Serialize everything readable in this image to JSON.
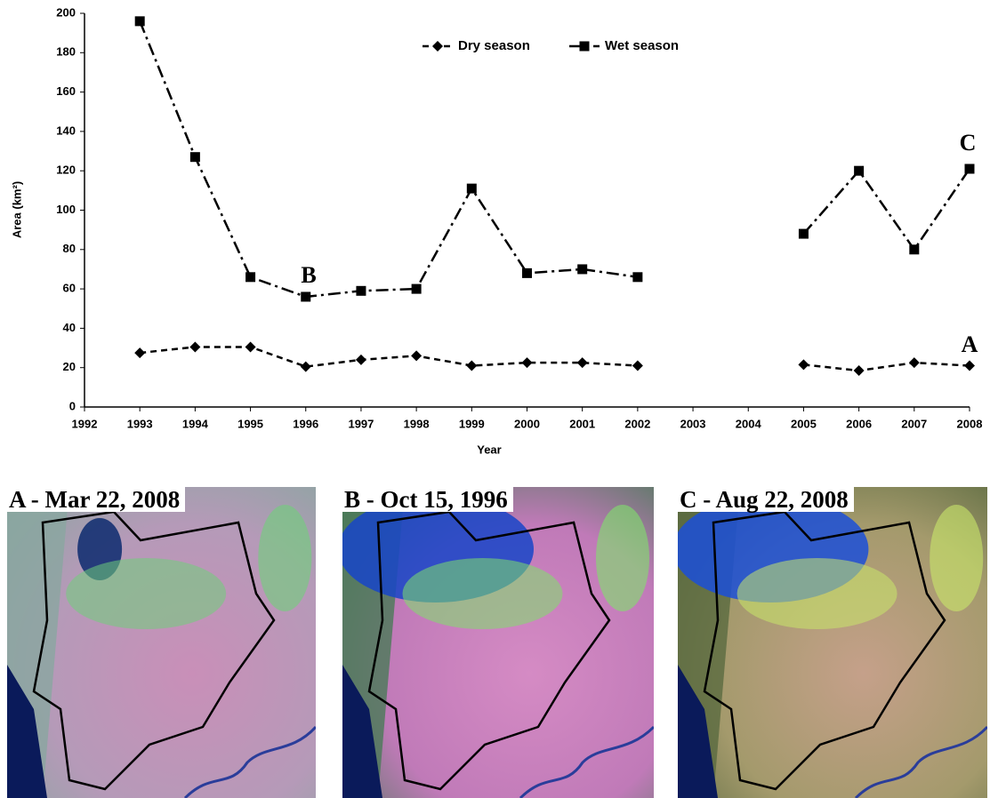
{
  "chart_data": {
    "type": "line",
    "x_label": "Year",
    "y_label": "Area (km²)",
    "x": [
      1993,
      1994,
      1995,
      1996,
      1997,
      1998,
      1999,
      2000,
      2001,
      2002,
      2003,
      2004,
      2005,
      2006,
      2007,
      2008
    ],
    "series": [
      {
        "name": "Dry season",
        "color": "#000000",
        "line_style": "dashed",
        "marker": "diamond",
        "values": [
          27.5,
          30.5,
          30.5,
          20.5,
          24,
          26,
          21,
          22.5,
          22.5,
          21,
          null,
          null,
          21.5,
          18.5,
          22.5,
          21
        ]
      },
      {
        "name": "Wet season",
        "color": "#000000",
        "line_style": "dashdot",
        "marker": "square",
        "values": [
          196,
          127,
          66,
          56,
          59,
          60,
          111,
          68,
          70,
          66,
          null,
          null,
          88,
          120,
          80,
          121
        ]
      }
    ],
    "xlim": [
      1992,
      2008
    ],
    "xticks": [
      1992,
      1993,
      1994,
      1995,
      1996,
      1997,
      1998,
      1999,
      2000,
      2001,
      2002,
      2003,
      2004,
      2005,
      2006,
      2007,
      2008
    ],
    "ylim": [
      0,
      200
    ],
    "yticks": [
      0,
      20,
      40,
      60,
      80,
      100,
      120,
      140,
      160,
      180,
      200
    ],
    "grid": false,
    "legend": "top-center",
    "annotations": [
      "A",
      "B",
      "C"
    ]
  },
  "images": [
    "A - Mar 22, 2008",
    "B - Oct 15, 1996",
    "C - Aug 22, 2008"
  ]
}
